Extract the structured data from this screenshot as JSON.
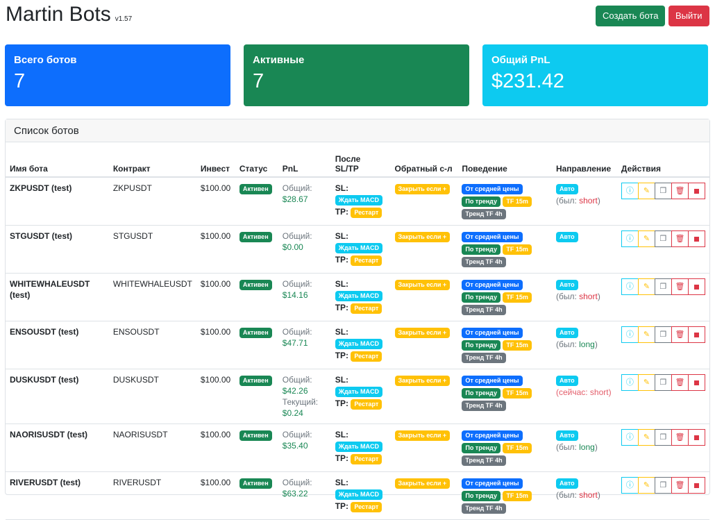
{
  "header": {
    "title": "Martin Bots",
    "version": "v1.57",
    "create_label": "Создать бота",
    "logout_label": "Выйти"
  },
  "stats": [
    {
      "label": "Всего ботов",
      "value": "7",
      "color": "#0d6efd"
    },
    {
      "label": "Активные",
      "value": "7",
      "color": "#198754"
    },
    {
      "label": "Общий PnL",
      "value": "$231.42",
      "color": "#0dcaf0"
    }
  ],
  "panel_title": "Список ботов",
  "columns": [
    "Имя бота",
    "Контракт",
    "Инвест",
    "Статус",
    "PnL",
    "После SL/TP",
    "Обратный с-л",
    "Поведение",
    "Направление",
    "Действия"
  ],
  "labels": {
    "status": "Активен",
    "total": "Общий:",
    "current": "Текущий:",
    "sl": "SL:",
    "tp": "TP:",
    "macd": "Ждать MACD",
    "restart": "Рестарт",
    "close_if": "Закрыть если +",
    "avg": "От средней цены",
    "trend": "По тренду",
    "tf15": "TF 15m",
    "tf4h": "Тренд TF 4h",
    "auto": "Авто"
  },
  "rows": [
    {
      "name": "ZKPUSDT (test)",
      "contract": "ZKPUSDT",
      "invest": "$100.00",
      "total": "$28.67",
      "current": null,
      "dir_prefix": "(был: ",
      "dir_value": "short",
      "dir_suffix": ")"
    },
    {
      "name": "STGUSDT (test)",
      "contract": "STGUSDT",
      "invest": "$100.00",
      "total": "$0.00",
      "current": null,
      "dir_prefix": null,
      "dir_value": null,
      "dir_suffix": null
    },
    {
      "name": "WHITEWHALEUSDT (test)",
      "contract": "WHITEWHALEUSDT",
      "invest": "$100.00",
      "total": "$14.16",
      "current": null,
      "dir_prefix": "(был: ",
      "dir_value": "short",
      "dir_suffix": ")"
    },
    {
      "name": "ENSOUSDT (test)",
      "contract": "ENSOUSDT",
      "invest": "$100.00",
      "total": "$47.71",
      "current": null,
      "dir_prefix": "(был: ",
      "dir_value": "long",
      "dir_suffix": ")"
    },
    {
      "name": "DUSKUSDT (test)",
      "contract": "DUSKUSDT",
      "invest": "$100.00",
      "total": "$42.26",
      "current": "$0.24",
      "dir_prefix": "(сейчас: ",
      "dir_value": "short",
      "dir_suffix": ")"
    },
    {
      "name": "NAORISUSDT (test)",
      "contract": "NAORISUSDT",
      "invest": "$100.00",
      "total": "$35.40",
      "current": null,
      "dir_prefix": "(был: ",
      "dir_value": "long",
      "dir_suffix": ")"
    },
    {
      "name": "RIVERUSDT (test)",
      "contract": "RIVERUSDT",
      "invest": "$100.00",
      "total": "$63.22",
      "current": null,
      "dir_prefix": "(был: ",
      "dir_value": "short",
      "dir_suffix": ")"
    }
  ]
}
